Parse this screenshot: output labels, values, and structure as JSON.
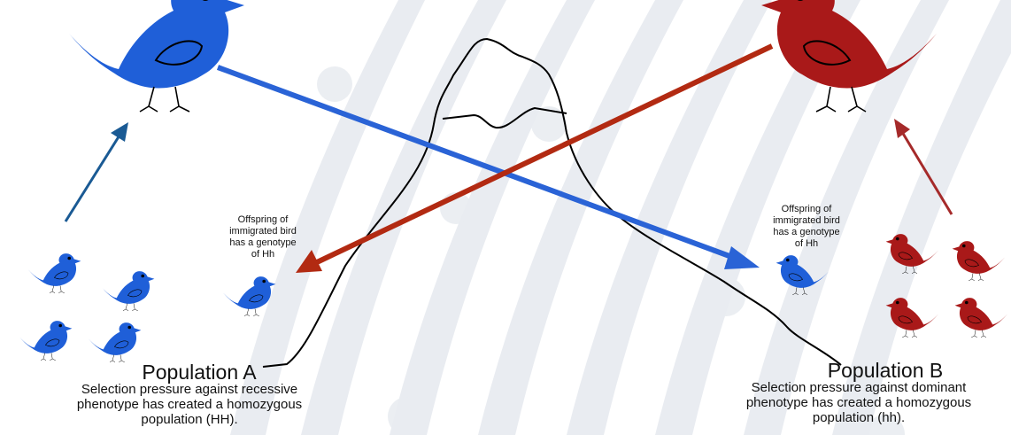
{
  "colors": {
    "blue_bird": "#1f5fd8",
    "red_bird": "#a91919",
    "blue_arrow": "#2a63d6",
    "red_arrow": "#b22a12",
    "small_blue_arrow": "#1a5a94",
    "small_red_arrow": "#a52a2a",
    "background_stripes": "#e9ecf1",
    "outline": "#000000"
  },
  "icons": [
    "bird-icon",
    "mountain-icon",
    "arrow-icon"
  ],
  "offspring_a": {
    "lines": [
      "Offspring of",
      "immigrated bird",
      "has a genotype",
      "of Hh"
    ]
  },
  "offspring_b": {
    "lines": [
      "Offspring of",
      "immigrated bird",
      "has a genotype",
      "of Hh"
    ]
  },
  "population_a": {
    "title": "Population A",
    "description": [
      "Selection pressure against recessive",
      "phenotype has created a homozygous",
      "population (HH)."
    ]
  },
  "population_b": {
    "title": "Population B",
    "description": [
      "Selection pressure against dominant",
      "phenotype has created a homozygous",
      "population (hh)."
    ]
  }
}
